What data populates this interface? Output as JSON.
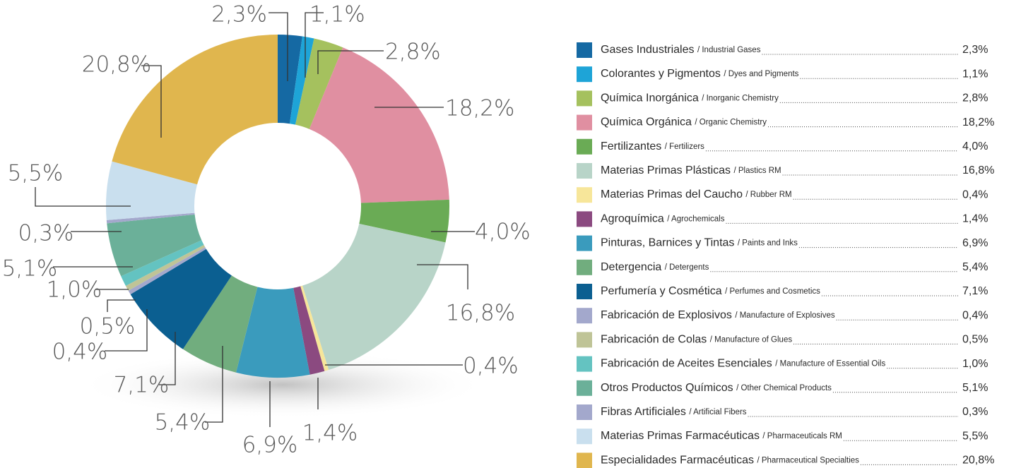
{
  "chart_data": {
    "type": "donut",
    "categories": [
      "Gases Industriales",
      "Colorantes y Pigmentos",
      "Química Inorgánica",
      "Química Orgánica",
      "Fertilizantes",
      "Materias Primas Plásticas",
      "Materias Primas del Caucho",
      "Agroquímica",
      "Pinturas, Barnices y Tintas",
      "Detergencia",
      "Perfumería y Cosmética",
      "Fabricación de Explosivos",
      "Fabricación de Colas",
      "Fabricación de Aceites Esenciales",
      "Otros Productos Químicos",
      "Fibras Artificiales",
      "Materias Primas Farmacéuticas",
      "Especialidades Farmacéuticas"
    ],
    "subcategories": [
      "/ Industrial Gases",
      "/ Dyes and Pigments",
      "/ Inorganic Chemistry",
      "/ Organic Chemistry",
      "/ Fertilizers",
      "/ Plastics RM",
      "/ Rubber RM",
      "/ Agrochemicals",
      "/ Paints and Inks",
      "/ Detergents",
      "/ Perfumes and Cosmetics",
      "/ Manufacture of Explosives",
      "/ Manufacture of Glues",
      "/ Manufacture of Essential Oils",
      "/ Other Chemical Products",
      "/ Artificial Fibers",
      "/ Pharmaceuticals RM",
      "/ Pharmaceutical Specialties"
    ],
    "values": [
      2.3,
      1.1,
      2.8,
      18.2,
      4.0,
      16.8,
      0.4,
      1.4,
      6.9,
      5.4,
      7.1,
      0.4,
      0.5,
      1.0,
      5.1,
      0.3,
      5.5,
      20.8
    ],
    "value_labels": [
      "2,3%",
      "1,1%",
      "2,8%",
      "18,2%",
      "4,0%",
      "16,8%",
      "0,4%",
      "1,4%",
      "6,9%",
      "5,4%",
      "7,1%",
      "0,4%",
      "0,5%",
      "1,0%",
      "5,1%",
      "0,3%",
      "5,5%",
      "20,8%"
    ],
    "colors": [
      "#1569a3",
      "#1ea4d7",
      "#a5c15e",
      "#e08fa1",
      "#6aab55",
      "#b8d4c8",
      "#f7e69a",
      "#8b4a80",
      "#3a9bbd",
      "#71ad7e",
      "#0b5f91",
      "#a3a8cc",
      "#bfc497",
      "#64c3c1",
      "#6bb099",
      "#a3a8cc",
      "#c9dfee",
      "#e0b64e"
    ]
  }
}
